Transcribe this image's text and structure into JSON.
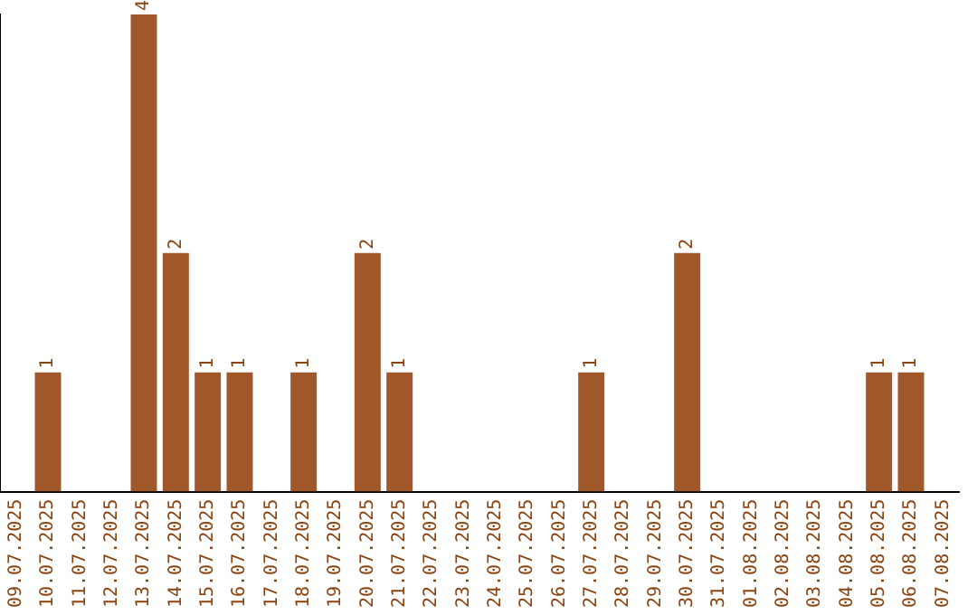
{
  "chart_data": {
    "type": "bar",
    "categories": [
      "09.07.2025",
      "10.07.2025",
      "11.07.2025",
      "12.07.2025",
      "13.07.2025",
      "14.07.2025",
      "15.07.2025",
      "16.07.2025",
      "17.07.2025",
      "18.07.2025",
      "19.07.2025",
      "20.07.2025",
      "21.07.2025",
      "22.07.2025",
      "23.07.2025",
      "24.07.2025",
      "25.07.2025",
      "26.07.2025",
      "27.07.2025",
      "28.07.2025",
      "29.07.2025",
      "30.07.2025",
      "31.07.2025",
      "01.08.2025",
      "02.08.2025",
      "03.08.2025",
      "04.08.2025",
      "05.08.2025",
      "06.08.2025",
      "07.08.2025"
    ],
    "values": [
      0,
      1,
      0,
      0,
      4,
      2,
      1,
      1,
      0,
      1,
      0,
      2,
      1,
      0,
      0,
      0,
      0,
      0,
      1,
      0,
      0,
      2,
      0,
      0,
      0,
      0,
      0,
      1,
      1,
      0
    ],
    "value_labels": [
      null,
      "1",
      null,
      null,
      "4",
      "2",
      "1",
      "1",
      null,
      "1",
      null,
      "2",
      "1",
      null,
      null,
      null,
      null,
      null,
      "1",
      null,
      null,
      "2",
      null,
      null,
      null,
      null,
      null,
      "1",
      "1",
      null
    ],
    "color": "#a0582a",
    "ylim": [
      0,
      4
    ],
    "tick_labels": "x",
    "grid": false,
    "legend": false
  }
}
